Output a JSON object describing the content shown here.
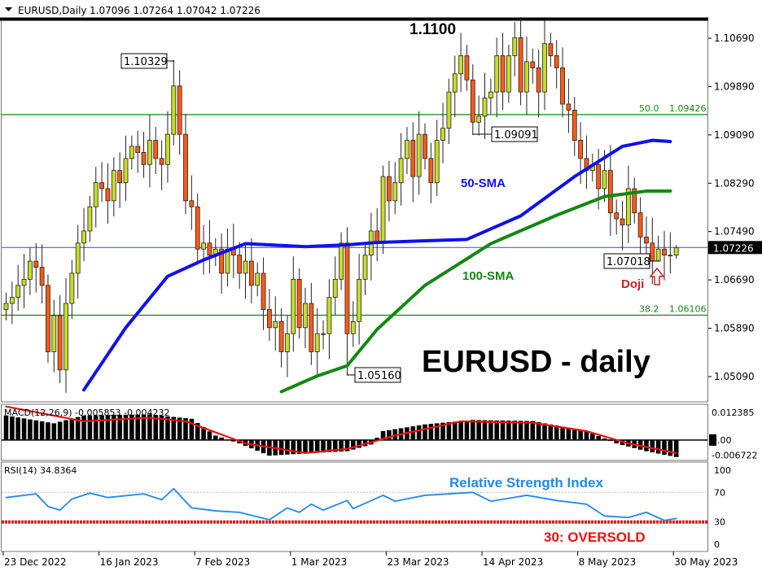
{
  "header": {
    "symbol_timeframe": "EURUSD,Daily",
    "ohlc": "1.07096 1.07264 1.07042 1.07226"
  },
  "chart_data": [
    {
      "type": "candlestick",
      "title": "EURUSD - daily",
      "x_tick_labels": [
        "23 Dec 2022",
        "16 Jan 2023",
        "7 Feb 2023",
        "1 Mar 2023",
        "23 Mar 2023",
        "14 Apr 2023",
        "8 May 2023",
        "30 May 2023"
      ],
      "x_tick_bar_index": [
        0,
        16,
        32,
        48,
        64,
        80,
        96,
        112
      ],
      "y_tick_labels": [
        "1.10690",
        "1.09890",
        "1.09090",
        "1.08290",
        "1.07490",
        "1.06690",
        "1.05890",
        "1.05090"
      ],
      "ylim": [
        1.0455,
        1.113
      ],
      "first_open": 1.062,
      "close": [
        1.063,
        1.064,
        1.066,
        1.067,
        1.07,
        1.069,
        1.066,
        1.055,
        1.061,
        1.052,
        1.063,
        1.068,
        1.073,
        1.075,
        1.079,
        1.083,
        1.082,
        1.08,
        1.085,
        1.083,
        1.087,
        1.089,
        1.088,
        1.086,
        1.09,
        1.087,
        1.086,
        1.091,
        1.099,
        1.091,
        1.08,
        1.079,
        1.072,
        1.073,
        1.071,
        1.072,
        1.068,
        1.072,
        1.071,
        1.068,
        1.07,
        1.066,
        1.068,
        1.062,
        1.059,
        1.06,
        1.055,
        1.058,
        1.067,
        1.059,
        1.063,
        1.055,
        1.058,
        1.058,
        1.064,
        1.067,
        1.073,
        1.058,
        1.06,
        1.067,
        1.071,
        1.075,
        1.073,
        1.084,
        1.08,
        1.083,
        1.087,
        1.09,
        1.084,
        1.091,
        1.087,
        1.083,
        1.09,
        1.092,
        1.098,
        1.101,
        1.104,
        1.1,
        1.093,
        1.094,
        1.097,
        1.098,
        1.104,
        1.098,
        1.104,
        1.107,
        1.098,
        1.103,
        1.102,
        1.098,
        1.106,
        1.104,
        1.102,
        1.096,
        1.095,
        1.09,
        1.087,
        1.085,
        1.086,
        1.082,
        1.085,
        1.078,
        1.077,
        1.076,
        1.082,
        1.078,
        1.074,
        1.073,
        1.07,
        1.072,
        1.071,
        1.071,
        1.07226
      ],
      "current_price": "1.07226",
      "colors": {
        "bull": "#c8dc28",
        "bear": "#ff5a14",
        "sma50": "#1010ee",
        "sma100": "#118811",
        "fib": "#118811",
        "current_line": "#4444cc"
      },
      "sma50": {
        "label": "50-SMA",
        "points": [
          [
            13,
            1.0487
          ],
          [
            20,
            1.059
          ],
          [
            27,
            1.0675
          ],
          [
            33,
            1.0702
          ],
          [
            40,
            1.0729
          ],
          [
            50,
            1.0724
          ],
          [
            57,
            1.0727
          ],
          [
            62,
            1.0731
          ],
          [
            77,
            1.0736
          ],
          [
            86,
            1.0775
          ],
          [
            95,
            1.084
          ],
          [
            103,
            1.089
          ],
          [
            108,
            1.09
          ],
          [
            111,
            1.0898
          ]
        ]
      },
      "sma100": {
        "label": "100-SMA",
        "points": [
          [
            46,
            1.0484
          ],
          [
            52,
            1.051
          ],
          [
            57,
            1.0527
          ],
          [
            62,
            1.0587
          ],
          [
            70,
            1.066
          ],
          [
            81,
            1.0729
          ],
          [
            92,
            1.0776
          ],
          [
            100,
            1.0807
          ],
          [
            107,
            1.0816
          ],
          [
            111,
            1.0816
          ]
        ]
      },
      "fib_levels": [
        {
          "ratio": "50.0",
          "price": "1.09426",
          "value": 1.09426
        },
        {
          "ratio": "38.2",
          "price": "1.06106",
          "value": 1.06106
        }
      ],
      "annotations": [
        {
          "text": "1.1100",
          "value": 1.11
        },
        {
          "text": "1.10329",
          "bar": 28,
          "value": 1.10329,
          "kind": "high"
        },
        {
          "text": "1.09091",
          "bar": 78,
          "value": 1.09091,
          "kind": "low"
        },
        {
          "text": "1.05160",
          "bar": 57,
          "value": 1.0516,
          "kind": "low"
        },
        {
          "text": "1.07018",
          "bar": 109,
          "value": 1.07018,
          "kind": "low"
        },
        {
          "text": "Doji",
          "bar": 109
        }
      ]
    },
    {
      "type": "bar+line",
      "title": "MACD(12,26,9) -0.005853 -0.004232",
      "y_tick_labels": [
        "0.012385",
        "0.00",
        "-0.006722"
      ],
      "histogram_points": [
        [
          0,
          0.011
        ],
        [
          8,
          0.0075
        ],
        [
          13,
          0.011
        ],
        [
          24,
          0.0115
        ],
        [
          31,
          0.0095
        ],
        [
          35,
          0.002
        ],
        [
          39,
          -0.0015
        ],
        [
          44,
          -0.007
        ],
        [
          50,
          -0.006
        ],
        [
          57,
          -0.005
        ],
        [
          61,
          -0.002
        ],
        [
          63,
          0.004
        ],
        [
          70,
          0.007
        ],
        [
          78,
          0.009
        ],
        [
          88,
          0.0085
        ],
        [
          97,
          0.004
        ],
        [
          102,
          -0.0015
        ],
        [
          107,
          -0.005
        ],
        [
          112,
          -0.0076
        ]
      ],
      "signal_points": [
        [
          0,
          0.015
        ],
        [
          13,
          0.0084
        ],
        [
          24,
          0.01
        ],
        [
          30,
          0.0084
        ],
        [
          40,
          -0.0015
        ],
        [
          50,
          -0.0058
        ],
        [
          57,
          -0.004
        ],
        [
          65,
          0.002
        ],
        [
          76,
          0.0084
        ],
        [
          88,
          0.0077
        ],
        [
          97,
          0.004
        ],
        [
          104,
          -0.0015
        ],
        [
          112,
          -0.0058
        ]
      ]
    },
    {
      "type": "line",
      "title": "RSI(14) 34.8364",
      "annotation": "Relative Strength Index",
      "oversold_label": "30: OVERSOLD",
      "y_tick_labels": [
        "100",
        "70",
        "30",
        "0"
      ],
      "ylim": [
        0,
        100
      ],
      "levels": [
        70,
        30
      ],
      "points": [
        [
          0,
          63
        ],
        [
          5,
          68
        ],
        [
          7,
          51
        ],
        [
          9,
          46
        ],
        [
          11,
          61
        ],
        [
          14,
          69
        ],
        [
          17,
          63
        ],
        [
          23,
          68
        ],
        [
          26,
          60
        ],
        [
          28,
          75
        ],
        [
          31,
          49
        ],
        [
          35,
          45
        ],
        [
          39,
          43
        ],
        [
          44,
          33
        ],
        [
          47,
          49
        ],
        [
          49,
          43
        ],
        [
          51,
          54
        ],
        [
          53,
          46
        ],
        [
          57,
          59
        ],
        [
          58,
          48
        ],
        [
          63,
          66
        ],
        [
          65,
          58
        ],
        [
          70,
          66
        ],
        [
          78,
          70
        ],
        [
          81,
          58
        ],
        [
          87,
          66
        ],
        [
          92,
          59
        ],
        [
          97,
          54
        ],
        [
          100,
          38
        ],
        [
          104,
          36
        ],
        [
          107,
          43
        ],
        [
          110,
          32
        ],
        [
          112,
          34.8
        ]
      ]
    }
  ]
}
